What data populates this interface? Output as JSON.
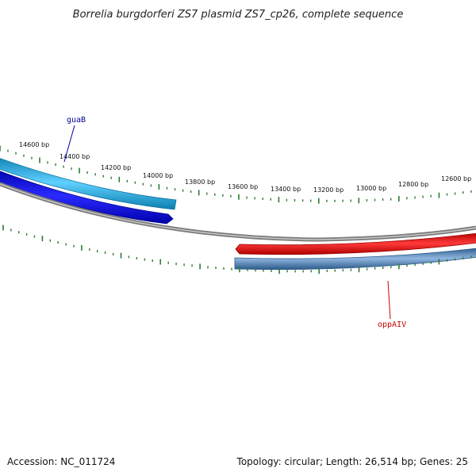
{
  "title": "Borrelia burgdorferi ZS7 plasmid ZS7_cp26, complete sequence",
  "accession": "Accession: NC_011724",
  "summary": "Topology: circular; Length: 26,514 bp; Genes: 25",
  "scale": {
    "tick_labels": [
      "14600 bp",
      "14400 bp",
      "14200 bp",
      "14000 bp",
      "13800 bp",
      "13600 bp",
      "13400 bp",
      "13200 bp",
      "13000 bp",
      "12800 bp",
      "12600 bp"
    ]
  },
  "genes": [
    {
      "name": "guaB",
      "strand": "forward",
      "color": "#1aa8e0",
      "label_color": "#000099"
    },
    {
      "name": "oppAIV",
      "strand": "reverse",
      "color": "#4f81b8",
      "label_color": "#cc0000"
    }
  ],
  "colors": {
    "backbone": "#8a8a8a",
    "ticks": "#2e7d32",
    "gene_forward_light": "#1aa8e0",
    "gene_forward_dark": "#0000ee",
    "gene_reverse_red": "#ee0000",
    "gene_reverse_blue": "#4f81b8"
  }
}
